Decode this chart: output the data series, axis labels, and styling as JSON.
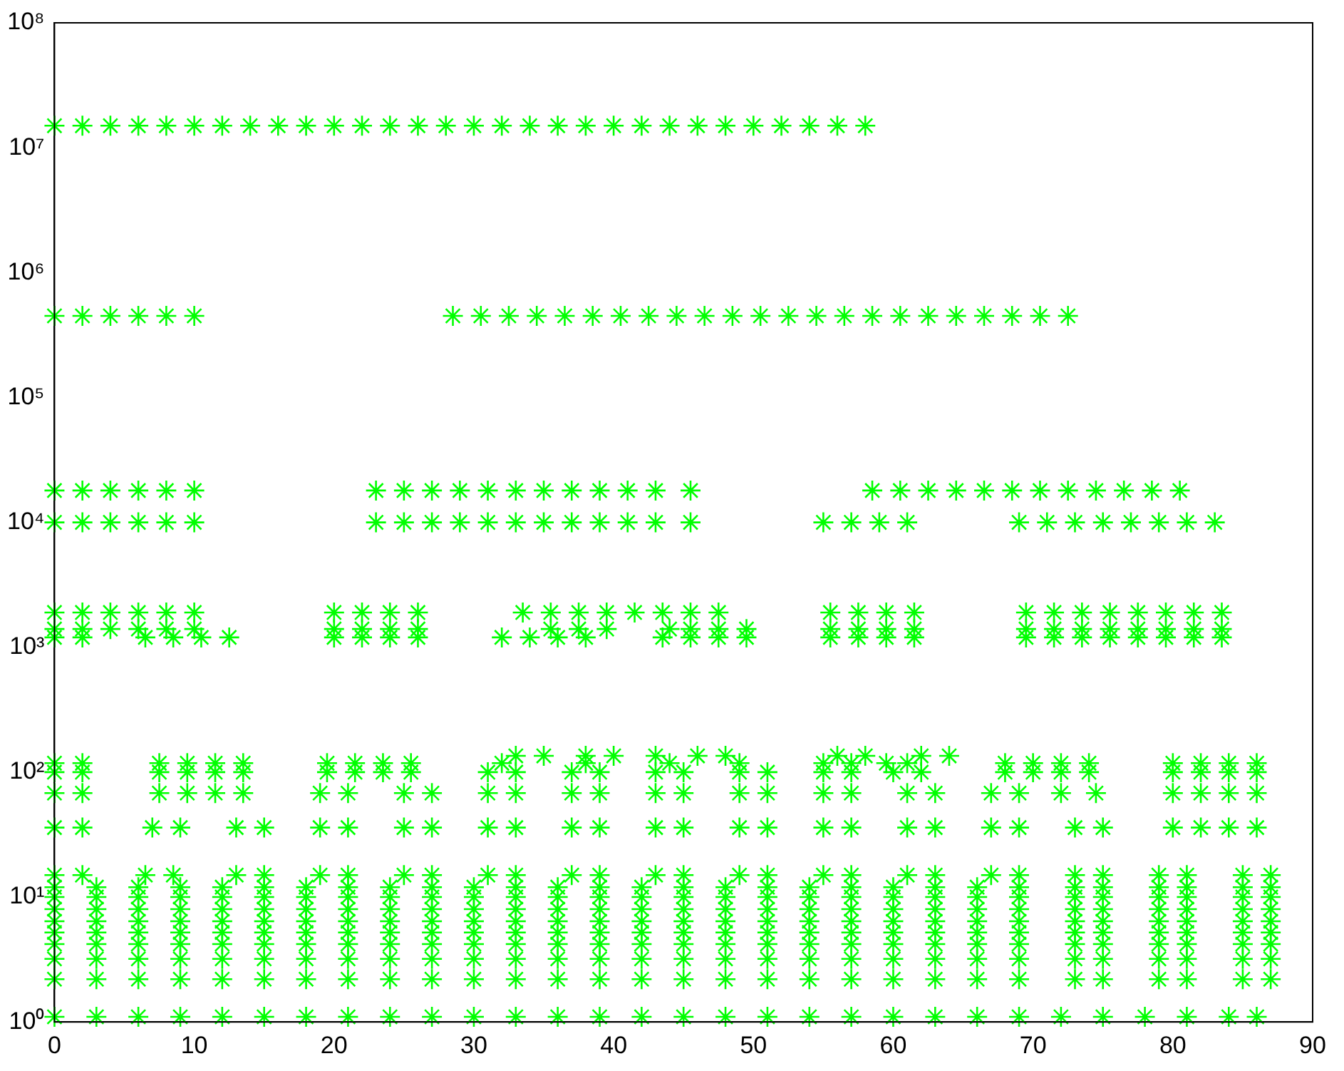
{
  "chart_data": {
    "type": "scatter",
    "marker": "cross",
    "log": "y",
    "grid": false,
    "legend": false,
    "xlim": [
      0,
      90
    ],
    "xticks": [
      0,
      10,
      20,
      30,
      40,
      50,
      60,
      70,
      80,
      90
    ],
    "ylim": [
      1,
      100000000
    ],
    "yticks": [
      {
        "value": 1,
        "label": "10⁰"
      },
      {
        "value": 10,
        "label": "10¹"
      },
      {
        "value": 100,
        "label": "10²"
      },
      {
        "value": 1000,
        "label": "10³"
      },
      {
        "value": 10000,
        "label": "10⁴"
      },
      {
        "value": 100000,
        "label": "10⁵"
      },
      {
        "value": 1000000,
        "label": "10⁶"
      },
      {
        "value": 10000000,
        "label": "10⁷"
      },
      {
        "value": 100000000,
        "label": "10⁸"
      }
    ],
    "series": [
      {
        "color": "#00ff00",
        "x": [
          0,
          2,
          4,
          6,
          8,
          10,
          12,
          14,
          16,
          18,
          20,
          22,
          24,
          26,
          28,
          30,
          32,
          34,
          36,
          38,
          40,
          42,
          44,
          46,
          48,
          50,
          52,
          54,
          56,
          58
        ],
        "values": [
          15000000,
          15000000,
          15000000,
          15000000,
          15000000,
          15000000,
          15000000,
          15000000,
          15000000,
          15000000,
          15000000,
          15000000,
          15000000,
          15000000,
          15000000,
          15000000,
          15000000,
          15000000,
          15000000,
          15000000,
          15000000,
          15000000,
          15000000,
          15000000,
          15000000,
          15000000,
          15000000,
          15000000,
          15000000,
          15000000
        ]
      },
      {
        "color": "#00ff00",
        "x": [
          0,
          2,
          4,
          6,
          8,
          10,
          28.5,
          30.5,
          32.5,
          34.5,
          36.5,
          38.5,
          40.5,
          42.5,
          44.5,
          46.5,
          48.5,
          50.5,
          52.5,
          54.5,
          56.5,
          58.5,
          60.5,
          62.5,
          64.5,
          66.5,
          68.5,
          70.5,
          72.5
        ],
        "values": [
          450000,
          450000,
          450000,
          450000,
          450000,
          450000,
          450000,
          450000,
          450000,
          450000,
          450000,
          450000,
          450000,
          450000,
          450000,
          450000,
          450000,
          450000,
          450000,
          450000,
          450000,
          450000,
          450000,
          450000,
          450000,
          450000,
          450000,
          450000,
          450000
        ]
      },
      {
        "color": "#00ff00",
        "x": [
          0,
          2,
          4,
          6,
          8,
          10,
          23,
          25,
          27,
          29,
          31,
          33,
          35,
          37,
          39,
          41,
          43,
          45.5,
          58.5,
          60.5,
          62.5,
          64.5,
          66.5,
          68.5,
          70.5,
          72.5,
          74.5,
          76.5,
          78.5,
          80.5
        ],
        "values": [
          18000,
          18000,
          18000,
          18000,
          18000,
          18000,
          18000,
          18000,
          18000,
          18000,
          18000,
          18000,
          18000,
          18000,
          18000,
          18000,
          18000,
          18000,
          18000,
          18000,
          18000,
          18000,
          18000,
          18000,
          18000,
          18000,
          18000,
          18000,
          18000,
          18000
        ]
      },
      {
        "color": "#00ff00",
        "x": [
          0,
          2,
          4,
          6,
          8,
          10,
          23,
          25,
          27,
          29,
          31,
          33,
          35,
          37,
          39,
          41,
          43,
          45.5,
          55,
          57,
          59,
          61,
          69,
          71,
          73,
          75,
          77,
          79,
          81,
          83
        ],
        "values": [
          10000,
          10000,
          10000,
          10000,
          10000,
          10000,
          10000,
          10000,
          10000,
          10000,
          10000,
          10000,
          10000,
          10000,
          10000,
          10000,
          10000,
          10000,
          10000,
          10000,
          10000,
          10000,
          10000,
          10000,
          10000,
          10000,
          10000,
          10000,
          10000,
          10000
        ]
      },
      {
        "color": "#00ff00",
        "x": [
          0,
          2,
          4,
          6,
          8,
          10,
          20,
          22,
          24,
          26,
          33.5,
          35.5,
          37.5,
          39.5,
          41.5,
          43.5,
          45.5,
          47.5,
          55.5,
          57.5,
          59.5,
          61.5,
          69.5,
          71.5,
          73.5,
          75.5,
          77.5,
          79.5,
          81.5,
          83.5
        ],
        "values": [
          1900,
          1900,
          1900,
          1900,
          1900,
          1900,
          1900,
          1900,
          1900,
          1900,
          1900,
          1900,
          1900,
          1900,
          1900,
          1900,
          1900,
          1900,
          1900,
          1900,
          1900,
          1900,
          1900,
          1900,
          1900,
          1900,
          1900,
          1900,
          1900,
          1900
        ]
      },
      {
        "color": "#00ff00",
        "x": [
          0,
          2,
          4,
          6,
          8,
          10,
          20,
          22,
          24,
          26,
          35.5,
          37.5,
          39.5,
          44,
          45.5,
          47.5,
          49.5,
          55.5,
          57.5,
          59.5,
          61.5,
          69.5,
          71.5,
          73.5,
          75.5,
          77.5,
          79.5,
          81.5,
          83.5
        ],
        "values": [
          1400,
          1400,
          1400,
          1400,
          1400,
          1400,
          1400,
          1400,
          1400,
          1400,
          1400,
          1400,
          1400,
          1400,
          1400,
          1400,
          1400,
          1400,
          1400,
          1400,
          1400,
          1400,
          1400,
          1400,
          1400,
          1400,
          1400,
          1400,
          1400
        ]
      },
      {
        "color": "#00ff00",
        "x": [
          0,
          2,
          6.5,
          8.5,
          10.5,
          12.5,
          20,
          22,
          24,
          26,
          32,
          34,
          36,
          38,
          43.5,
          45.5,
          47.5,
          49.5,
          55.5,
          57.5,
          59.5,
          61.5,
          69.5,
          71.5,
          73.5,
          75.5,
          77.5,
          79.5,
          81.5,
          83.5
        ],
        "values": [
          1200,
          1200,
          1200,
          1200,
          1200,
          1200,
          1200,
          1200,
          1200,
          1200,
          1200,
          1200,
          1200,
          1200,
          1200,
          1200,
          1200,
          1200,
          1200,
          1200,
          1200,
          1200,
          1200,
          1200,
          1200,
          1200,
          1200,
          1200,
          1200,
          1200
        ]
      },
      {
        "color": "#00ff00",
        "x": [
          33,
          35,
          38,
          40,
          43,
          46,
          48,
          56,
          58,
          62,
          64
        ],
        "values": [
          135,
          135,
          135,
          135,
          135,
          135,
          135,
          135,
          135,
          135,
          135
        ]
      },
      {
        "color": "#00ff00",
        "x": [
          0,
          2,
          7.5,
          9.5,
          11.5,
          13.5,
          19.5,
          21.5,
          23.5,
          25.5,
          32,
          38,
          44,
          49,
          55,
          57,
          59.5,
          61,
          68,
          70,
          72,
          74,
          80,
          82,
          84,
          86
        ],
        "values": [
          118,
          118,
          118,
          118,
          118,
          118,
          118,
          118,
          118,
          118,
          118,
          118,
          118,
          118,
          118,
          118,
          118,
          118,
          118,
          118,
          118,
          118,
          118,
          118,
          118,
          118
        ]
      },
      {
        "color": "#00ff00",
        "x": [
          0,
          2,
          7.5,
          9.5,
          11.5,
          13.5,
          19.5,
          21.5,
          23.5,
          25.5,
          31,
          33,
          37,
          39,
          43,
          45,
          49,
          51,
          55,
          57,
          60,
          62,
          68,
          70,
          72,
          74,
          80,
          82,
          84,
          86
        ],
        "values": [
          100,
          100,
          100,
          100,
          100,
          100,
          100,
          100,
          100,
          100,
          100,
          100,
          100,
          100,
          100,
          100,
          100,
          100,
          100,
          100,
          100,
          100,
          100,
          100,
          100,
          100,
          100,
          100,
          100,
          100
        ]
      },
      {
        "color": "#00ff00",
        "x": [
          0,
          2,
          7.5,
          9.5,
          11.5,
          13.5,
          19,
          21,
          25,
          27,
          31,
          33,
          37,
          39,
          43,
          45,
          49,
          51,
          55,
          57,
          61,
          63,
          67,
          69,
          72,
          74.5,
          80,
          82,
          84,
          86
        ],
        "values": [
          68,
          68,
          68,
          68,
          68,
          68,
          68,
          68,
          68,
          68,
          68,
          68,
          68,
          68,
          68,
          68,
          68,
          68,
          68,
          68,
          68,
          68,
          68,
          68,
          68,
          68,
          68,
          68,
          68,
          68
        ]
      },
      {
        "color": "#00ff00",
        "x": [
          0,
          2,
          7,
          9,
          13,
          15,
          19,
          21,
          25,
          27,
          31,
          33,
          37,
          39,
          43,
          45,
          49,
          51,
          55,
          57,
          61,
          63,
          67,
          69,
          73,
          75,
          80,
          82,
          84,
          86
        ],
        "values": [
          36,
          36,
          36,
          36,
          36,
          36,
          36,
          36,
          36,
          36,
          36,
          36,
          36,
          36,
          36,
          36,
          36,
          36,
          36,
          36,
          36,
          36,
          36,
          36,
          36,
          36,
          36,
          36,
          36,
          36
        ]
      },
      {
        "color": "#00ff00",
        "x": [
          0,
          2,
          6.5,
          8.5,
          13,
          15,
          19,
          21,
          25,
          27,
          31,
          33,
          37,
          39,
          43,
          45,
          49,
          51,
          55,
          57,
          61,
          63,
          67,
          69,
          73,
          75,
          79,
          81,
          85,
          87
        ],
        "values": [
          15,
          15,
          15,
          15,
          15,
          15,
          15,
          15,
          15,
          15,
          15,
          15,
          15,
          15,
          15,
          15,
          15,
          15,
          15,
          15,
          15,
          15,
          15,
          15,
          15,
          15,
          15,
          15,
          15,
          15
        ]
      },
      {
        "color": "#00ff00",
        "x": [
          0,
          3,
          6,
          9,
          12,
          15,
          18,
          21,
          24,
          27,
          30,
          33,
          36,
          39,
          42,
          45,
          48,
          51,
          54,
          57,
          60,
          63,
          66,
          69,
          73,
          75,
          79,
          81,
          85,
          87
        ],
        "values": [
          12,
          12,
          12,
          12,
          12,
          12,
          12,
          12,
          12,
          12,
          12,
          12,
          12,
          12,
          12,
          12,
          12,
          12,
          12,
          12,
          12,
          12,
          12,
          12,
          12,
          12,
          12,
          12,
          12,
          12
        ]
      },
      {
        "color": "#00ff00",
        "x": [
          0,
          3,
          6,
          9,
          12,
          15,
          18,
          21,
          24,
          27,
          30,
          33,
          36,
          39,
          42,
          45,
          48,
          51,
          54,
          57,
          60,
          63,
          66,
          69,
          73,
          75,
          79,
          81,
          85,
          87
        ],
        "values": [
          10,
          10,
          10,
          10,
          10,
          10,
          10,
          10,
          10,
          10,
          10,
          10,
          10,
          10,
          10,
          10,
          10,
          10,
          10,
          10,
          10,
          10,
          10,
          10,
          10,
          10,
          10,
          10,
          10,
          10
        ]
      },
      {
        "color": "#00ff00",
        "x": [
          0,
          3,
          6,
          9,
          12,
          15,
          18,
          21,
          24,
          27,
          30,
          33,
          36,
          39,
          42,
          45,
          48,
          51,
          54,
          57,
          60,
          63,
          66,
          69,
          73,
          75,
          79,
          81,
          85,
          87
        ],
        "values": [
          8,
          8,
          8,
          8,
          8,
          8,
          8,
          8,
          8,
          8,
          8,
          8,
          8,
          8,
          8,
          8,
          8,
          8,
          8,
          8,
          8,
          8,
          8,
          8,
          8,
          8,
          8,
          8,
          8,
          8
        ]
      },
      {
        "color": "#00ff00",
        "x": [
          0,
          3,
          6,
          9,
          12,
          15,
          18,
          21,
          24,
          27,
          30,
          33,
          36,
          39,
          42,
          45,
          48,
          51,
          54,
          57,
          60,
          63,
          66,
          69,
          73,
          75,
          79,
          81,
          85,
          87
        ],
        "values": [
          6.4,
          6.4,
          6.4,
          6.4,
          6.4,
          6.4,
          6.4,
          6.4,
          6.4,
          6.4,
          6.4,
          6.4,
          6.4,
          6.4,
          6.4,
          6.4,
          6.4,
          6.4,
          6.4,
          6.4,
          6.4,
          6.4,
          6.4,
          6.4,
          6.4,
          6.4,
          6.4,
          6.4,
          6.4,
          6.4
        ]
      },
      {
        "color": "#00ff00",
        "x": [
          0,
          3,
          6,
          9,
          12,
          15,
          18,
          21,
          24,
          27,
          30,
          33,
          36,
          39,
          42,
          45,
          48,
          51,
          54,
          57,
          60,
          63,
          66,
          69,
          73,
          75,
          79,
          81,
          85,
          87
        ],
        "values": [
          5.2,
          5.2,
          5.2,
          5.2,
          5.2,
          5.2,
          5.2,
          5.2,
          5.2,
          5.2,
          5.2,
          5.2,
          5.2,
          5.2,
          5.2,
          5.2,
          5.2,
          5.2,
          5.2,
          5.2,
          5.2,
          5.2,
          5.2,
          5.2,
          5.2,
          5.2,
          5.2,
          5.2,
          5.2,
          5.2
        ]
      },
      {
        "color": "#00ff00",
        "x": [
          0,
          3,
          6,
          9,
          12,
          15,
          18,
          21,
          24,
          27,
          30,
          33,
          36,
          39,
          42,
          45,
          48,
          51,
          54,
          57,
          60,
          63,
          66,
          69,
          73,
          75,
          79,
          81,
          85,
          87
        ],
        "values": [
          4.2,
          4.2,
          4.2,
          4.2,
          4.2,
          4.2,
          4.2,
          4.2,
          4.2,
          4.2,
          4.2,
          4.2,
          4.2,
          4.2,
          4.2,
          4.2,
          4.2,
          4.2,
          4.2,
          4.2,
          4.2,
          4.2,
          4.2,
          4.2,
          4.2,
          4.2,
          4.2,
          4.2,
          4.2,
          4.2
        ]
      },
      {
        "color": "#00ff00",
        "x": [
          0,
          3,
          6,
          9,
          12,
          15,
          18,
          21,
          24,
          27,
          30,
          33,
          36,
          39,
          42,
          45,
          48,
          51,
          54,
          57,
          60,
          63,
          66,
          69,
          73,
          75,
          79,
          81,
          85,
          87
        ],
        "values": [
          3.2,
          3.2,
          3.2,
          3.2,
          3.2,
          3.2,
          3.2,
          3.2,
          3.2,
          3.2,
          3.2,
          3.2,
          3.2,
          3.2,
          3.2,
          3.2,
          3.2,
          3.2,
          3.2,
          3.2,
          3.2,
          3.2,
          3.2,
          3.2,
          3.2,
          3.2,
          3.2,
          3.2,
          3.2,
          3.2
        ]
      },
      {
        "color": "#00ff00",
        "x": [
          0,
          3,
          6,
          9,
          12,
          15,
          18,
          21,
          24,
          27,
          30,
          33,
          36,
          39,
          42,
          45,
          48,
          51,
          54,
          57,
          60,
          63,
          66,
          69,
          73,
          75,
          79,
          81,
          85,
          87
        ],
        "values": [
          2.2,
          2.2,
          2.2,
          2.2,
          2.2,
          2.2,
          2.2,
          2.2,
          2.2,
          2.2,
          2.2,
          2.2,
          2.2,
          2.2,
          2.2,
          2.2,
          2.2,
          2.2,
          2.2,
          2.2,
          2.2,
          2.2,
          2.2,
          2.2,
          2.2,
          2.2,
          2.2,
          2.2,
          2.2,
          2.2
        ]
      },
      {
        "color": "#00ff00",
        "x": [
          0,
          3,
          6,
          9,
          12,
          15,
          18,
          21,
          24,
          27,
          30,
          33,
          36,
          39,
          42,
          45,
          48,
          51,
          54,
          57,
          60,
          63,
          66,
          69,
          72,
          75,
          78,
          81,
          84,
          86
        ],
        "values": [
          1.1,
          1.1,
          1.1,
          1.1,
          1.1,
          1.1,
          1.1,
          1.1,
          1.1,
          1.1,
          1.1,
          1.1,
          1.1,
          1.1,
          1.1,
          1.1,
          1.1,
          1.1,
          1.1,
          1.1,
          1.1,
          1.1,
          1.1,
          1.1,
          1.1,
          1.1,
          1.1,
          1.1,
          1.1,
          1.1
        ]
      }
    ]
  }
}
